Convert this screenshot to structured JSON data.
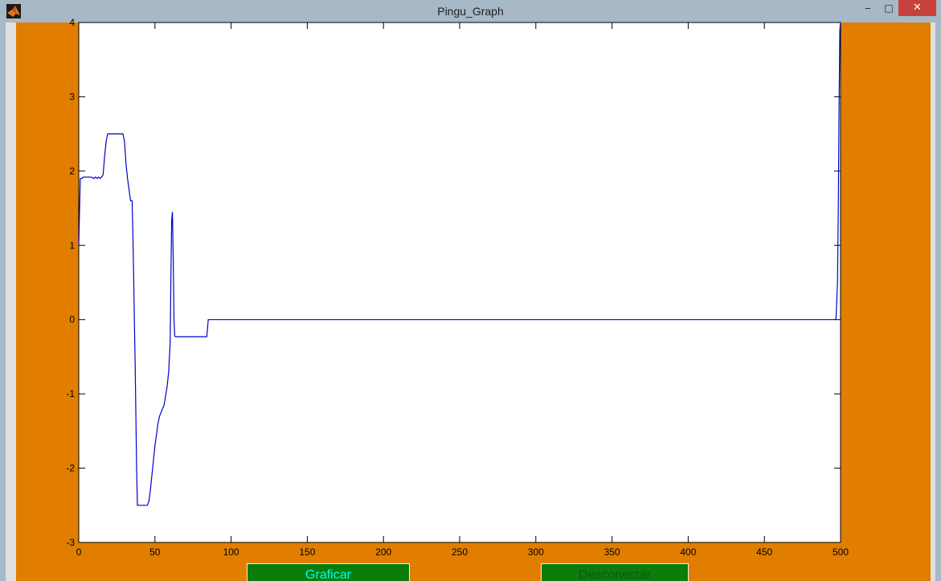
{
  "window": {
    "title": "Pingu_Graph",
    "minimize_glyph": "‒",
    "maximize_glyph": "□",
    "close_glyph": "✕"
  },
  "colors": {
    "figure_bg": "#e17e00",
    "axes_bg": "#ffffff",
    "line": "#0000cc",
    "button_bg": "#0a7d0a",
    "graficar_text": "#00ffff",
    "desconectar_text": "#0d5a0d"
  },
  "buttons": {
    "graficar": "Graficar",
    "desconectar": "Desconectar"
  },
  "chart_data": {
    "type": "line",
    "title": "",
    "xlabel": "",
    "ylabel": "",
    "xlim": [
      0,
      500
    ],
    "ylim": [
      -3,
      4
    ],
    "xticks": [
      0,
      50,
      100,
      150,
      200,
      250,
      300,
      350,
      400,
      450,
      500
    ],
    "yticks": [
      -3,
      -2,
      -1,
      0,
      1,
      2,
      3,
      4
    ],
    "grid": false,
    "series": [
      {
        "x": [
          0,
          1,
          2,
          3,
          8,
          10,
          11,
          12,
          13,
          14,
          15,
          16,
          17,
          18,
          19,
          20,
          21,
          22,
          24,
          26,
          28,
          29,
          30,
          31,
          32,
          33,
          34,
          35,
          35.5,
          36,
          36.5,
          37,
          37.5,
          38,
          38.5,
          39,
          39.5,
          40,
          41,
          43,
          45,
          46,
          47,
          48,
          49,
          50,
          51,
          52,
          53,
          54,
          56,
          58,
          59,
          60,
          60.5,
          61,
          61.5,
          62,
          62.5,
          63,
          63.5,
          65,
          80,
          83,
          84,
          85,
          100,
          200,
          300,
          400,
          497,
          498,
          498.5,
          499,
          499.5,
          500
        ],
        "y": [
          1.0,
          1.9,
          1.9,
          1.92,
          1.92,
          1.9,
          1.92,
          1.9,
          1.92,
          1.9,
          1.92,
          1.95,
          2.2,
          2.4,
          2.5,
          2.5,
          2.5,
          2.5,
          2.5,
          2.5,
          2.5,
          2.5,
          2.4,
          2.1,
          1.9,
          1.75,
          1.6,
          1.6,
          1.2,
          0.6,
          0.0,
          -0.6,
          -1.3,
          -2.0,
          -2.5,
          -2.5,
          -2.5,
          -2.5,
          -2.5,
          -2.5,
          -2.5,
          -2.45,
          -2.3,
          -2.1,
          -1.9,
          -1.7,
          -1.55,
          -1.4,
          -1.3,
          -1.25,
          -1.15,
          -0.9,
          -0.7,
          -0.3,
          0.6,
          1.35,
          1.45,
          0.8,
          0.0,
          -0.22,
          -0.23,
          -0.23,
          -0.23,
          -0.23,
          -0.23,
          0.0,
          0.0,
          0.0,
          0.0,
          0.0,
          0.0,
          0.5,
          1.5,
          2.8,
          3.9,
          4.0
        ]
      }
    ]
  }
}
